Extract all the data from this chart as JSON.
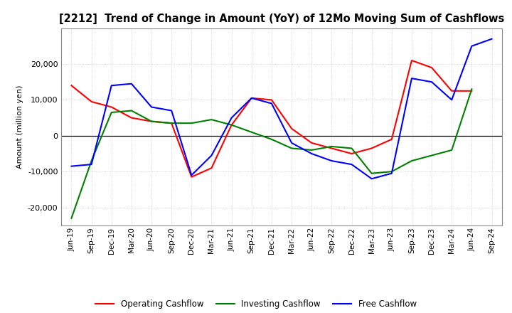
{
  "title": "[2212]  Trend of Change in Amount (YoY) of 12Mo Moving Sum of Cashflows",
  "ylabel": "Amount (million yen)",
  "x_labels": [
    "Jun-19",
    "Sep-19",
    "Dec-19",
    "Mar-20",
    "Jun-20",
    "Sep-20",
    "Dec-20",
    "Mar-21",
    "Jun-21",
    "Sep-21",
    "Dec-21",
    "Mar-22",
    "Jun-22",
    "Sep-22",
    "Dec-22",
    "Mar-23",
    "Jun-23",
    "Sep-23",
    "Dec-23",
    "Mar-24",
    "Jun-24",
    "Sep-24"
  ],
  "operating": [
    14000,
    9500,
    8000,
    5000,
    4000,
    3500,
    -11500,
    -9000,
    3000,
    10500,
    10000,
    2000,
    -2000,
    -3500,
    -5000,
    -3500,
    -1000,
    21000,
    19000,
    12500,
    12500,
    null
  ],
  "investing": [
    -23000,
    -7000,
    6500,
    7000,
    4000,
    3500,
    3500,
    4500,
    3000,
    1000,
    -1000,
    -3500,
    -4000,
    -3000,
    -3500,
    -10500,
    -10000,
    -7000,
    -5500,
    -4000,
    13000,
    null
  ],
  "free": [
    -8500,
    -8000,
    14000,
    14500,
    8000,
    7000,
    -11000,
    -5500,
    5000,
    10500,
    9000,
    -2000,
    -5000,
    -7000,
    -8000,
    -12000,
    -10500,
    16000,
    15000,
    10000,
    25000,
    27000
  ],
  "ylim": [
    -25000,
    30000
  ],
  "yticks": [
    -20000,
    -10000,
    0,
    10000,
    20000
  ],
  "operating_color": "#ff0000",
  "investing_color": "#008000",
  "free_color": "#0000ff",
  "bg_color": "#ffffff",
  "grid_color": "#c8c8c8"
}
